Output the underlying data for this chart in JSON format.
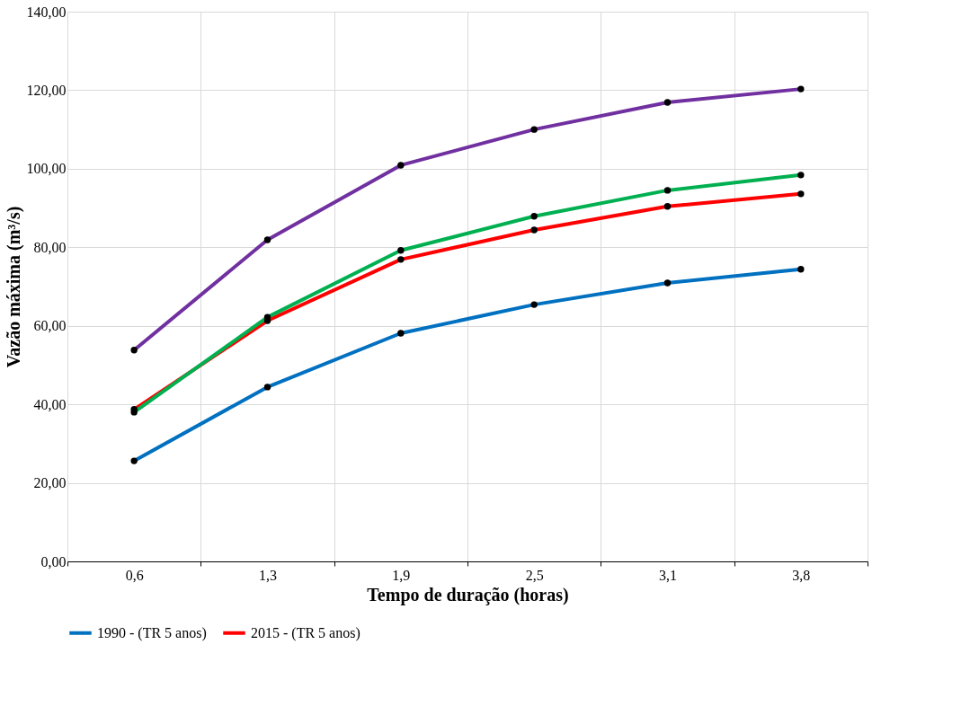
{
  "chart_data": {
    "type": "line",
    "xlabel": "Tempo de duração (horas)",
    "ylabel": "Vazão máxima (m³/s)",
    "categories": [
      "0,6",
      "1,3",
      "1,9",
      "2,5",
      "3,1",
      "3,8"
    ],
    "series": [
      {
        "name": "1990 - (TR 5 anos)",
        "color": "#0070c0",
        "values": [
          25.6,
          44.4,
          58.1,
          65.4,
          70.9,
          74.4
        ]
      },
      {
        "name": "2015 - (TR 5 anos)",
        "color": "#ff0000",
        "values": [
          38.7,
          61.3,
          76.9,
          84.4,
          90.4,
          93.6
        ]
      },
      {
        "color": "#00b050",
        "values": [
          38.0,
          62.2,
          79.2,
          87.9,
          94.5,
          98.4
        ]
      },
      {
        "color": "#7030a0",
        "values": [
          53.8,
          81.9,
          100.9,
          110.0,
          116.9,
          120.3
        ]
      }
    ],
    "ylim": [
      0,
      140
    ],
    "yticks": [
      {
        "value": 0,
        "label": "0,00"
      },
      {
        "value": 20,
        "label": "20,00"
      },
      {
        "value": 40,
        "label": "40,00"
      },
      {
        "value": 60,
        "label": "60,00"
      },
      {
        "value": 80,
        "label": "80,00"
      },
      {
        "value": 100,
        "label": "100,00"
      },
      {
        "value": 120,
        "label": "120,00"
      },
      {
        "value": 140,
        "label": "140,00"
      }
    ],
    "grid": true,
    "legend": "bottom",
    "marker": "circle",
    "line_style": "solid"
  }
}
